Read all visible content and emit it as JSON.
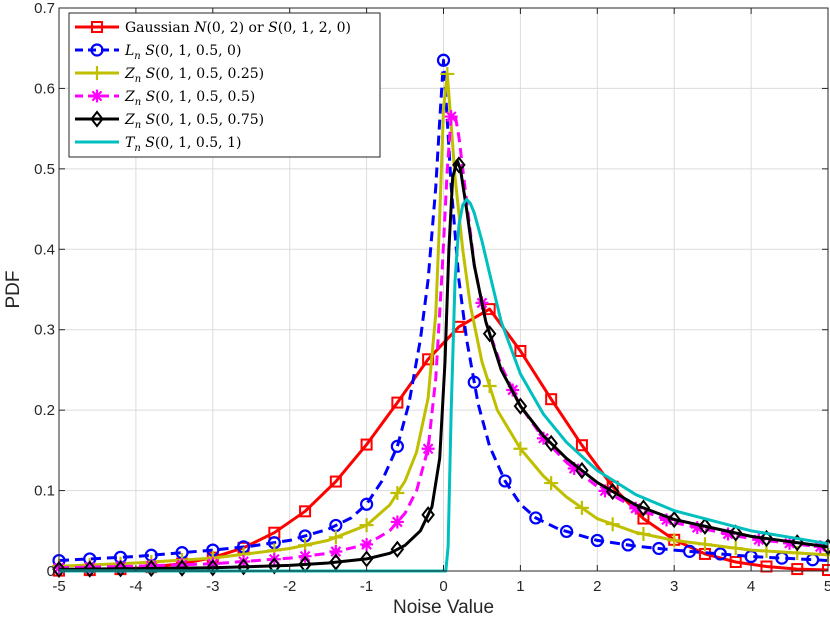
{
  "chart_data": {
    "type": "line",
    "xlabel": "Noise Value",
    "ylabel": "PDF",
    "xlim": [
      -5,
      5
    ],
    "ylim": [
      0,
      0.7
    ],
    "grid": true,
    "legend_position": "top-left",
    "xticks": [
      "-5",
      "-4",
      "-3",
      "-2",
      "-1",
      "0",
      "1",
      "2",
      "3",
      "4",
      "5"
    ],
    "yticks": [
      "0",
      "0.1",
      "0.2",
      "0.3",
      "0.4",
      "0.5",
      "0.6",
      "0.7"
    ],
    "series": [
      {
        "name": "Gaussian",
        "legend": [
          "Gaussian ",
          "N",
          "(0, 2) or ",
          "S",
          "(0, 1, 2, 0)"
        ],
        "color": "#ff0000",
        "dash": "solid",
        "marker": "square",
        "x": [
          -5.0,
          -4.6,
          -4.2,
          -3.8,
          -3.4,
          -3.0,
          -2.6,
          -2.2,
          -1.8,
          -1.4,
          -1.0,
          -0.6,
          -0.2,
          0.2,
          0.6,
          1.0,
          1.4,
          1.8,
          2.2,
          2.6,
          3.0,
          3.4,
          3.8,
          4.2,
          4.6,
          5.0
        ],
        "y": [
          0.0005,
          0.0011,
          0.0023,
          0.0048,
          0.0092,
          0.0166,
          0.0288,
          0.0476,
          0.0742,
          0.1112,
          0.1572,
          0.2094,
          0.2632,
          0.3036,
          0.3256,
          0.2736,
          0.2136,
          0.1564,
          0.1048,
          0.0652,
          0.0388,
          0.0212,
          0.0112,
          0.0056,
          0.0024,
          0.0012
        ],
        "marker_x": [
          -5.0,
          -4.6,
          -4.2,
          -3.8,
          -3.4,
          -3.0,
          -2.6,
          -2.2,
          -1.8,
          -1.4,
          -1.0,
          -0.6,
          -0.2,
          0.2,
          0.6,
          1.0,
          1.4,
          1.8,
          2.2,
          2.6,
          3.0,
          3.4,
          3.8,
          4.2,
          4.6,
          5.0
        ]
      },
      {
        "name": "L_n",
        "legend": [
          "L",
          "n",
          " S",
          "(0, 1, 0.5, 0)"
        ],
        "color": "#0000ff",
        "dash": "dashed",
        "marker": "circle",
        "x": [
          -5.0,
          -4.0,
          -3.0,
          -2.5,
          -2.0,
          -1.5,
          -1.2,
          -1.0,
          -0.8,
          -0.6,
          -0.45,
          -0.3,
          -0.2,
          -0.1,
          -0.05,
          0.0,
          0.05,
          0.1,
          0.2,
          0.3,
          0.45,
          0.6,
          0.8,
          1.0,
          1.2,
          1.5,
          2.0,
          2.5,
          3.0,
          4.0,
          5.0
        ],
        "y": [
          0.013,
          0.018,
          0.026,
          0.031,
          0.038,
          0.052,
          0.066,
          0.083,
          0.112,
          0.155,
          0.208,
          0.288,
          0.362,
          0.478,
          0.56,
          0.635,
          0.56,
          0.478,
          0.362,
          0.288,
          0.208,
          0.155,
          0.112,
          0.083,
          0.066,
          0.052,
          0.038,
          0.031,
          0.026,
          0.018,
          0.013
        ],
        "marker_x": [
          -5.0,
          -4.6,
          -4.2,
          -3.8,
          -3.4,
          -3.0,
          -2.6,
          -2.2,
          -1.8,
          -1.4,
          -1.0,
          -0.6,
          0.0,
          0.4,
          0.8,
          1.2,
          1.6,
          2.0,
          2.4,
          2.8,
          3.2,
          3.6,
          4.0,
          4.4,
          4.8
        ]
      },
      {
        "name": "Z_n 0.25",
        "legend": [
          "Z",
          "n",
          " S",
          "(0, 1, 0.5, 0.25)"
        ],
        "color": "#bfbf00",
        "dash": "solid",
        "marker": "plus",
        "x": [
          -5.0,
          -4.0,
          -3.0,
          -2.0,
          -1.5,
          -1.0,
          -0.7,
          -0.5,
          -0.35,
          -0.2,
          -0.1,
          -0.05,
          0.0,
          0.05,
          0.1,
          0.15,
          0.25,
          0.35,
          0.5,
          0.7,
          1.0,
          1.3,
          1.6,
          2.0,
          2.5,
          3.0,
          4.0,
          5.0
        ],
        "y": [
          0.006,
          0.01,
          0.016,
          0.028,
          0.038,
          0.057,
          0.082,
          0.112,
          0.148,
          0.215,
          0.32,
          0.44,
          0.575,
          0.618,
          0.555,
          0.49,
          0.4,
          0.33,
          0.26,
          0.2,
          0.152,
          0.118,
          0.092,
          0.065,
          0.048,
          0.038,
          0.026,
          0.02
        ],
        "marker_x": [
          -5.0,
          -4.6,
          -4.2,
          -3.8,
          -3.4,
          -3.0,
          -2.6,
          -2.2,
          -1.8,
          -1.4,
          -1.0,
          -0.6,
          0.05,
          0.6,
          1.0,
          1.4,
          1.8,
          2.2,
          2.6,
          3.0,
          3.4,
          3.8,
          4.2,
          4.6,
          5.0
        ]
      },
      {
        "name": "Z_n 0.5",
        "legend": [
          "Z",
          "n",
          " S",
          "(0, 1, 0.5, 0.5)"
        ],
        "color": "#ff00ff",
        "dash": "dashed",
        "marker": "asterisk",
        "x": [
          -5.0,
          -4.0,
          -3.0,
          -2.0,
          -1.5,
          -1.0,
          -0.7,
          -0.5,
          -0.35,
          -0.2,
          -0.1,
          -0.02,
          0.05,
          0.1,
          0.15,
          0.2,
          0.3,
          0.4,
          0.55,
          0.75,
          1.0,
          1.3,
          1.6,
          2.0,
          2.5,
          3.0,
          4.0,
          5.0
        ],
        "y": [
          0.004,
          0.006,
          0.009,
          0.016,
          0.022,
          0.033,
          0.05,
          0.072,
          0.1,
          0.152,
          0.24,
          0.37,
          0.5,
          0.565,
          0.568,
          0.54,
          0.46,
          0.38,
          0.31,
          0.255,
          0.205,
          0.165,
          0.135,
          0.105,
          0.078,
          0.06,
          0.04,
          0.029
        ],
        "marker_x": [
          -5.0,
          -4.6,
          -4.2,
          -3.8,
          -3.4,
          -3.0,
          -2.6,
          -2.2,
          -1.8,
          -1.4,
          -1.0,
          -0.6,
          -0.2,
          0.1,
          0.5,
          0.9,
          1.3,
          1.7,
          2.1,
          2.5,
          2.9,
          3.3,
          3.7,
          4.1,
          4.5,
          4.9
        ]
      },
      {
        "name": "Z_n 0.75",
        "legend": [
          "Z",
          "n",
          " S",
          "(0, 1, 0.5, 0.75)"
        ],
        "color": "#000000",
        "dash": "solid",
        "marker": "diamond",
        "x": [
          -5.0,
          -4.0,
          -3.0,
          -2.0,
          -1.5,
          -1.0,
          -0.7,
          -0.5,
          -0.3,
          -0.15,
          -0.05,
          0.02,
          0.07,
          0.12,
          0.18,
          0.22,
          0.3,
          0.4,
          0.55,
          0.75,
          1.0,
          1.3,
          1.6,
          2.0,
          2.5,
          3.0,
          4.0,
          5.0
        ],
        "y": [
          0.002,
          0.003,
          0.004,
          0.007,
          0.01,
          0.015,
          0.022,
          0.032,
          0.05,
          0.08,
          0.14,
          0.26,
          0.4,
          0.49,
          0.51,
          0.5,
          0.45,
          0.38,
          0.31,
          0.25,
          0.205,
          0.168,
          0.14,
          0.11,
          0.082,
          0.064,
          0.043,
          0.03
        ],
        "marker_x": [
          -5.0,
          -4.6,
          -4.2,
          -3.8,
          -3.4,
          -3.0,
          -2.6,
          -2.2,
          -1.8,
          -1.4,
          -1.0,
          -0.6,
          -0.2,
          0.2,
          0.6,
          1.0,
          1.4,
          1.8,
          2.2,
          2.6,
          3.0,
          3.4,
          3.8,
          4.2,
          4.6,
          5.0
        ]
      },
      {
        "name": "T_n",
        "legend": [
          "T",
          "n",
          " S",
          "(0, 1, 0.5, 1)"
        ],
        "color": "#00bfbf",
        "dash": "solid",
        "marker": "none",
        "x": [
          -5.0,
          -1.0,
          -0.3,
          -0.1,
          -0.03,
          0.0,
          0.03,
          0.06,
          0.1,
          0.15,
          0.2,
          0.25,
          0.3,
          0.35,
          0.4,
          0.5,
          0.6,
          0.75,
          1.0,
          1.3,
          1.6,
          2.0,
          2.5,
          3.0,
          4.0,
          5.0
        ],
        "y": [
          0.0,
          0.0,
          0.0,
          0.0,
          0.0,
          0.0,
          0.0,
          0.03,
          0.2,
          0.36,
          0.43,
          0.455,
          0.462,
          0.457,
          0.445,
          0.41,
          0.37,
          0.31,
          0.245,
          0.195,
          0.16,
          0.125,
          0.095,
          0.075,
          0.05,
          0.034
        ],
        "marker_x": []
      }
    ]
  }
}
